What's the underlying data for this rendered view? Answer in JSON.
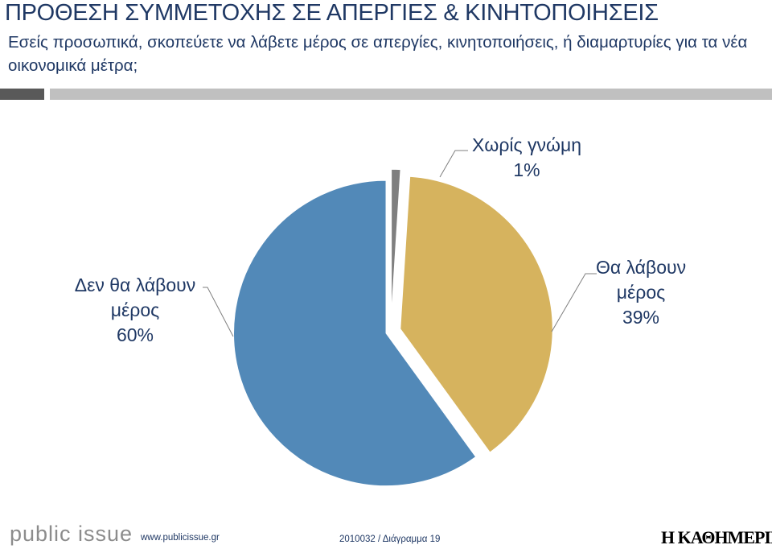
{
  "header": {
    "title": "ΠΡΟΘΕΣΗ ΣΥΜΜΕΤΟΧΗΣ ΣΕ ΑΠΕΡΓΙΕΣ & ΚΙΝΗΤΟΠΟΙΗΣΕΙΣ",
    "question": "Εσείς προσωπικά, σκοπεύετε να λάβετε μέρος σε απεργίες, κινητοποιήσεις, ή διαμαρτυρίες για τα νέα οικονομικά μέτρα;"
  },
  "chart_data": {
    "type": "pie",
    "slices": [
      {
        "label_lines": [
          "Χωρίς γνώμη"
        ],
        "percent_text": "1%",
        "value": 1,
        "color": "#7f7f7f"
      },
      {
        "label_lines": [
          "Θα λάβουν",
          "μέρος"
        ],
        "percent_text": "39%",
        "value": 39,
        "color": "#d6b35e"
      },
      {
        "label_lines": [
          "Δεν θα λάβουν",
          "μέρος"
        ],
        "percent_text": "60%",
        "value": 60,
        "color": "#5289b8"
      }
    ],
    "legend": "none",
    "exploded": true
  },
  "footer": {
    "logo_text": "public issue",
    "url": "www.publicissue.gr",
    "code": "2010032 / Διάγραμμα 19",
    "brand": "Η ΚΑΘΗΜΕΡΙΝΗ"
  }
}
